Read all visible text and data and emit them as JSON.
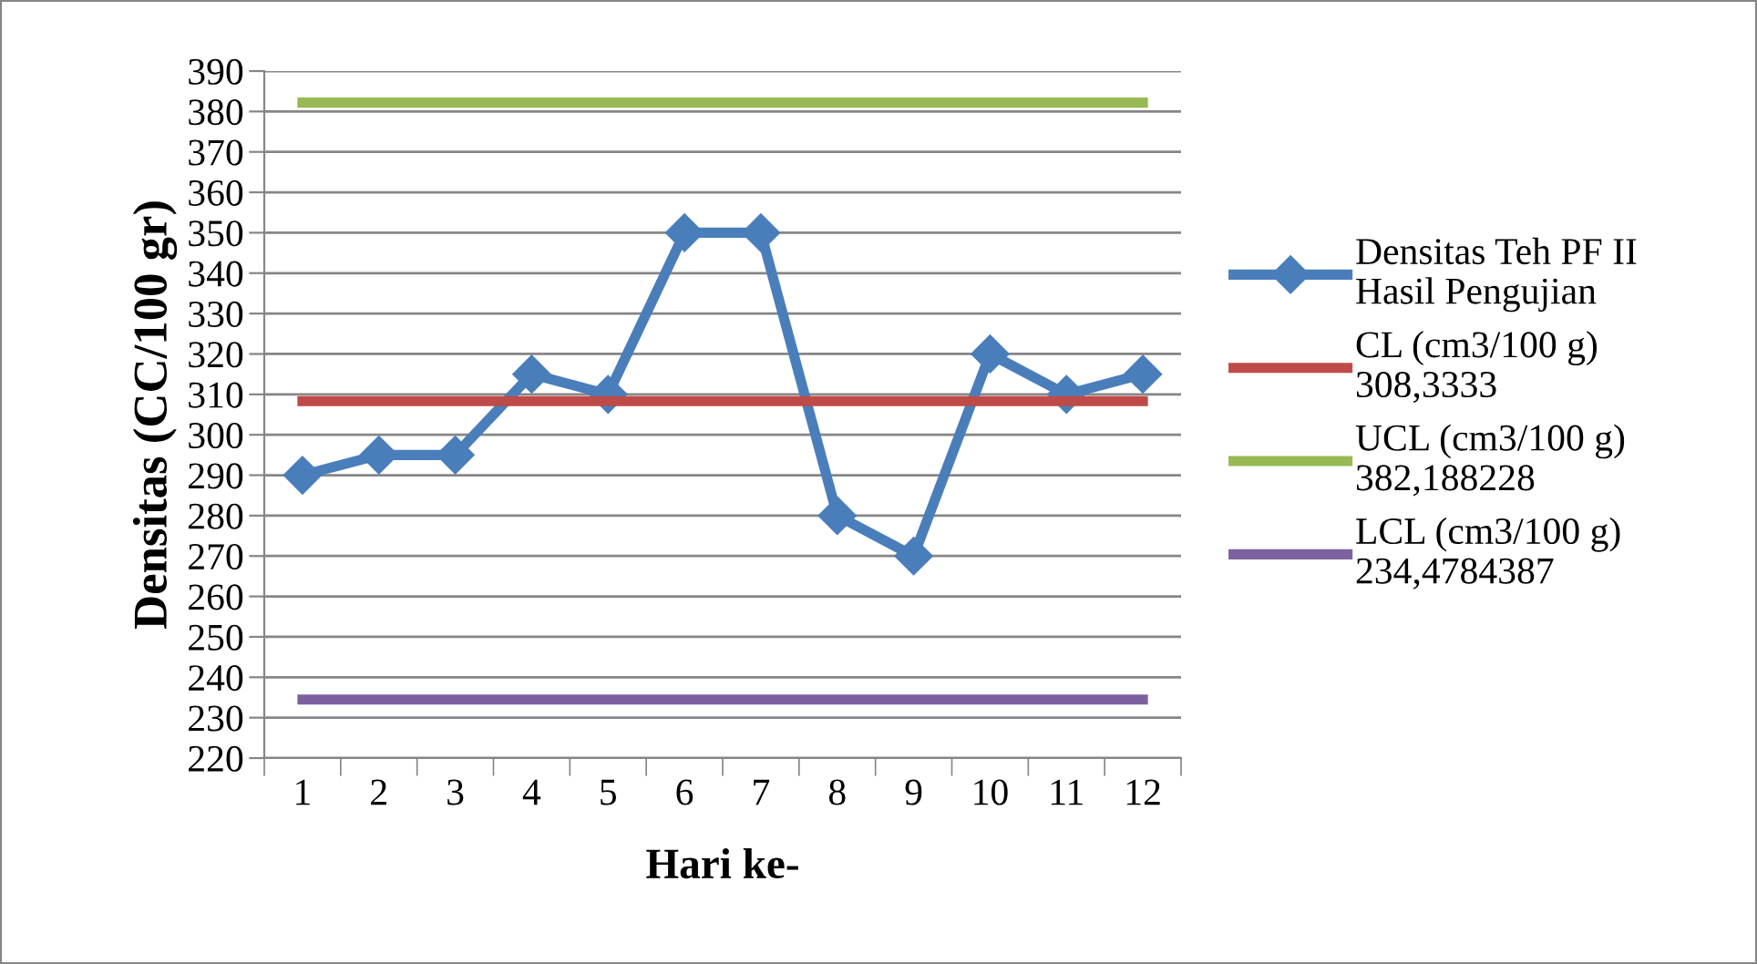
{
  "chart_data": {
    "type": "line",
    "xlabel": "Hari ke-",
    "ylabel": "Densitas (CC/100 gr)",
    "categories": [
      "1",
      "2",
      "3",
      "4",
      "5",
      "6",
      "7",
      "8",
      "9",
      "10",
      "11",
      "12"
    ],
    "series": [
      {
        "name": "Densitas Teh PF II\nHasil Pengujian",
        "color": "#4a7ebb",
        "marker": "diamond",
        "values": [
          290,
          295,
          295,
          315,
          310,
          350,
          350,
          280,
          270,
          320,
          310,
          315
        ]
      },
      {
        "name": "CL (cm3/100 g)\n308,3333",
        "color": "#be4b48",
        "marker": "none",
        "values": [
          308.3333,
          308.3333,
          308.3333,
          308.3333,
          308.3333,
          308.3333,
          308.3333,
          308.3333,
          308.3333,
          308.3333,
          308.3333,
          308.3333
        ]
      },
      {
        "name": "UCL (cm3/100 g)\n382,188228",
        "color": "#98b954",
        "marker": "none",
        "values": [
          382.188228,
          382.188228,
          382.188228,
          382.188228,
          382.188228,
          382.188228,
          382.188228,
          382.188228,
          382.188228,
          382.188228,
          382.188228,
          382.188228
        ]
      },
      {
        "name": "LCL (cm3/100 g)\n234,4784387",
        "color": "#7d60a0",
        "marker": "none",
        "values": [
          234.4784387,
          234.4784387,
          234.4784387,
          234.4784387,
          234.4784387,
          234.4784387,
          234.4784387,
          234.4784387,
          234.4784387,
          234.4784387,
          234.4784387,
          234.4784387
        ]
      }
    ],
    "ylim": [
      220,
      390
    ],
    "yticks": [
      220,
      230,
      240,
      250,
      260,
      270,
      280,
      290,
      300,
      310,
      320,
      330,
      340,
      350,
      360,
      370,
      380,
      390
    ],
    "grid": "y",
    "legend": "right",
    "line_style": "solid"
  }
}
